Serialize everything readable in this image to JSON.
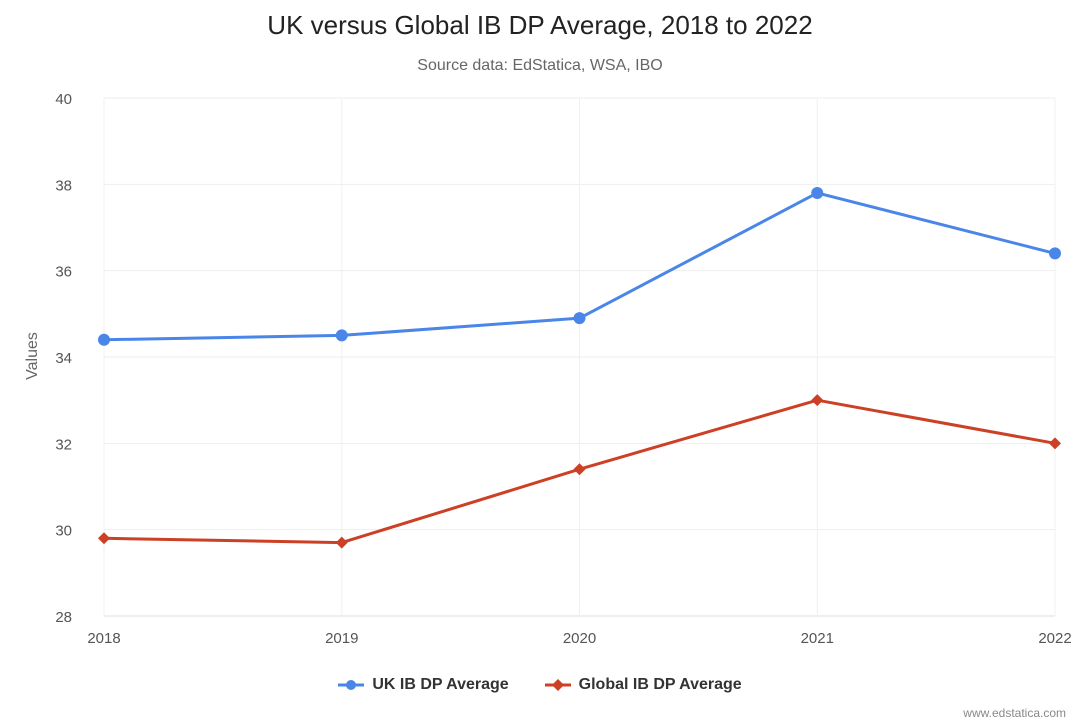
{
  "chart_data": {
    "type": "line",
    "title": "UK versus Global IB DP Average, 2018 to 2022",
    "subtitle": "Source data: EdStatica, WSA, IBO",
    "xlabel": "",
    "ylabel": "Values",
    "categories": [
      "2018",
      "2019",
      "2020",
      "2021",
      "2022"
    ],
    "ylim": [
      28,
      40
    ],
    "yticks": [
      28,
      30,
      32,
      34,
      36,
      38,
      40
    ],
    "grid": true,
    "legend": "bottom-center",
    "series": [
      {
        "name": "UK IB DP Average",
        "values": [
          34.4,
          34.5,
          34.9,
          37.8,
          36.4
        ],
        "color": "#4a86e8",
        "marker": "circle"
      },
      {
        "name": "Global IB DP Average",
        "values": [
          29.8,
          29.7,
          31.4,
          33.0,
          32.0
        ],
        "color": "#cc4125",
        "marker": "diamond"
      }
    ]
  },
  "watermark": "www.edstatica.com"
}
